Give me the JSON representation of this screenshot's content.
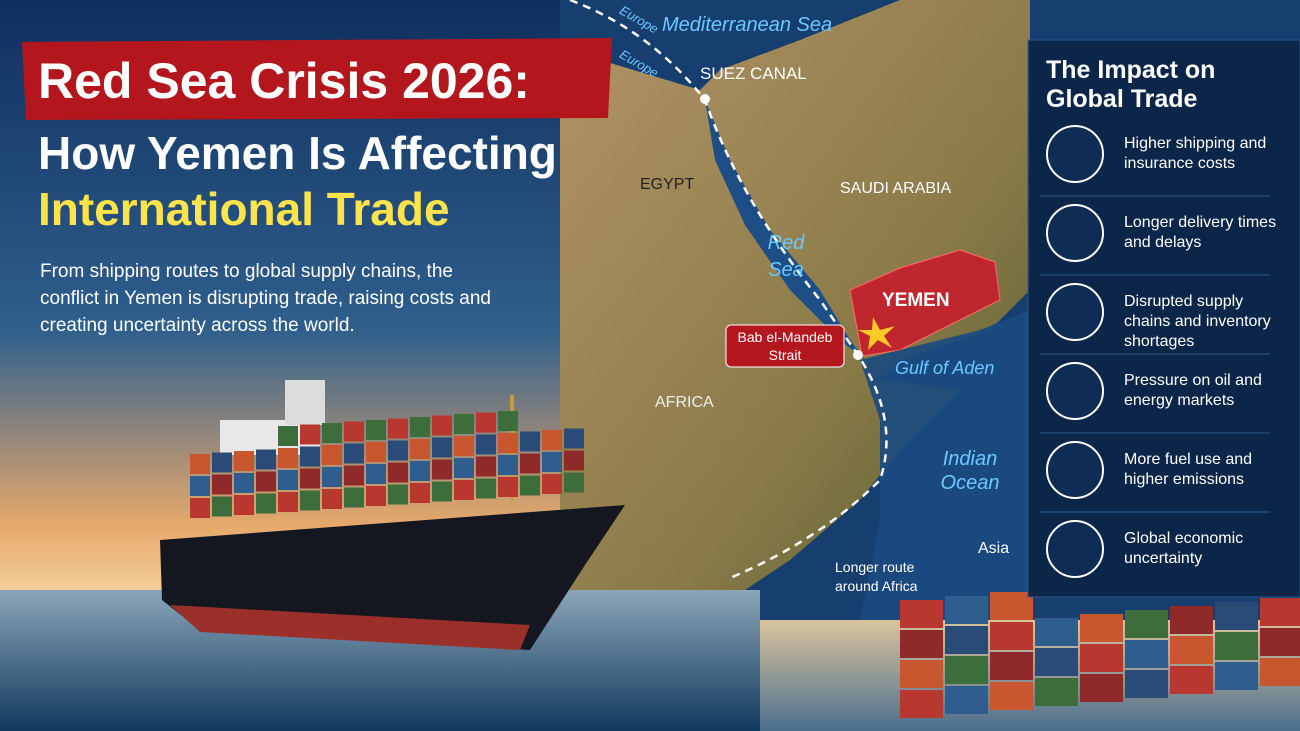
{
  "title": {
    "line1": "Red Sea Crisis 2026:",
    "line2": "How Yemen Is Affecting",
    "line3": "International Trade"
  },
  "intro": "From shipping routes to global supply chains, the conflict in Yemen is disrupting trade, raising costs and creating uncertainty across the world.",
  "map": {
    "sea_north": "Mediterranean Sea",
    "europe_1": "Europe",
    "europe_2": "Europe",
    "suez": "SUEZ CANAL",
    "egypt": "EGYPT",
    "saudi": "SAUDI ARABIA",
    "red_sea": "Red Sea",
    "yemen": "YEMEN",
    "strait": "Bab el-Mandeb Strait",
    "gulf": "Gulf of Aden",
    "africa": "AFRICA",
    "ocean": "Indian Ocean",
    "route": "Longer route around Africa",
    "asia": "Asia"
  },
  "panel": {
    "title": "The Impact on Global Trade",
    "items": [
      "Higher shipping and insurance costs",
      "Longer delivery times and delays",
      "Disrupted supply chains and inventory shortages",
      "Pressure on oil and energy markets",
      "More fuel use and higher emissions",
      "Global economic uncertainty"
    ]
  }
}
